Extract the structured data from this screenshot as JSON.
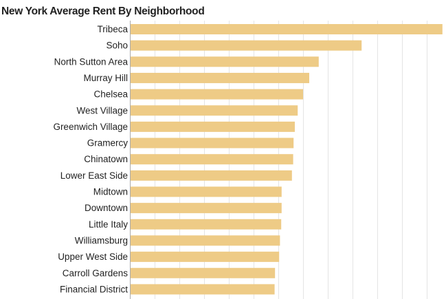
{
  "chart_data": {
    "type": "bar",
    "orientation": "horizontal",
    "title": "New York Average Rent By Neighborhood",
    "xlabel": "",
    "ylabel": "",
    "xlim": [
      0,
      7600
    ],
    "grid": true,
    "grid_step": 600,
    "bar_color": "#EECB86",
    "categories": [
      "Tribeca",
      "Soho",
      "North Sutton Area",
      "Murray Hill",
      "Chelsea",
      "West Village",
      "Greenwich Village",
      "Gramercy",
      "Chinatown",
      "Lower East Side",
      "Midtown",
      "Downtown",
      "Little Italy",
      "Williamsburg",
      "Upper West Side",
      "Carroll Gardens",
      "Financial District"
    ],
    "values": [
      7580,
      5620,
      4580,
      4350,
      4200,
      4070,
      4000,
      3970,
      3960,
      3930,
      3680,
      3680,
      3670,
      3640,
      3620,
      3520,
      3510
    ]
  }
}
